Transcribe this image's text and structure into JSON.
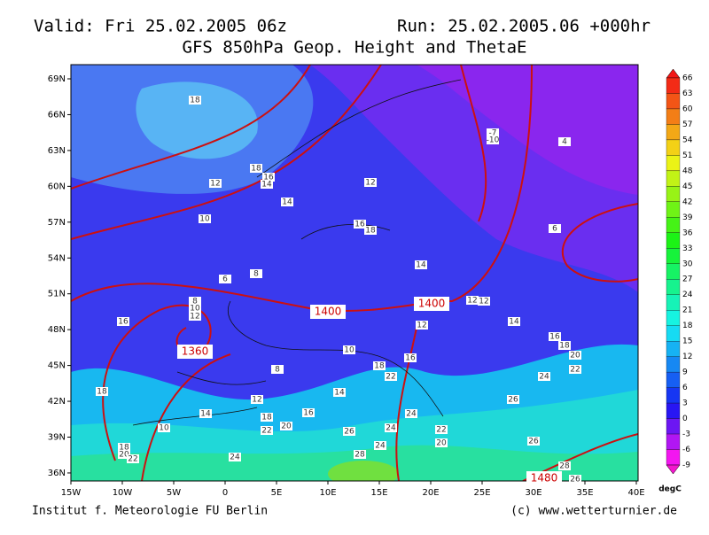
{
  "header": {
    "valid": "Valid: Fri 25.02.2005 06z",
    "run": "Run: 25.02.2005.06 +000hr",
    "title": "GFS 850hPa Geop. Height and ThetaE"
  },
  "map": {
    "lat_labels": [
      "69N",
      "66N",
      "63N",
      "60N",
      "57N",
      "54N",
      "51N",
      "48N",
      "45N",
      "42N",
      "39N",
      "36N"
    ],
    "lon_labels": [
      "15W",
      "10W",
      "5W",
      "0",
      "5E",
      "10E",
      "15E",
      "20E",
      "25E",
      "30E",
      "35E",
      "40E"
    ],
    "height_labels": [
      "1400",
      "1400",
      "1360",
      "1480"
    ],
    "thetae_labels": [
      "18",
      "18",
      "16",
      "14",
      "12",
      "12",
      "14",
      "10",
      "16",
      "18",
      "14",
      "8",
      "6",
      "6",
      "8",
      "10",
      "12",
      "16",
      "12",
      "12",
      "14",
      "12",
      "10",
      "16",
      "18",
      "20",
      "22",
      "18",
      "22",
      "16",
      "8",
      "24",
      "12",
      "14",
      "18",
      "24",
      "16",
      "14",
      "18",
      "22",
      "20",
      "26",
      "24",
      "26",
      "22",
      "20",
      "10",
      "18",
      "20",
      "22",
      "24",
      "28",
      "24",
      "26",
      "28",
      "26",
      "-7",
      "-10",
      "4"
    ]
  },
  "colorbar": {
    "unit": "degC",
    "ticks": [
      66,
      63,
      60,
      57,
      54,
      51,
      48,
      45,
      42,
      39,
      36,
      33,
      30,
      27,
      24,
      21,
      18,
      15,
      12,
      9,
      6,
      3,
      0,
      -3,
      -6,
      -9
    ]
  },
  "footer": {
    "left": "Institut f. Meteorologie  FU Berlin",
    "right": "(c) www.wetterturnier.de"
  }
}
